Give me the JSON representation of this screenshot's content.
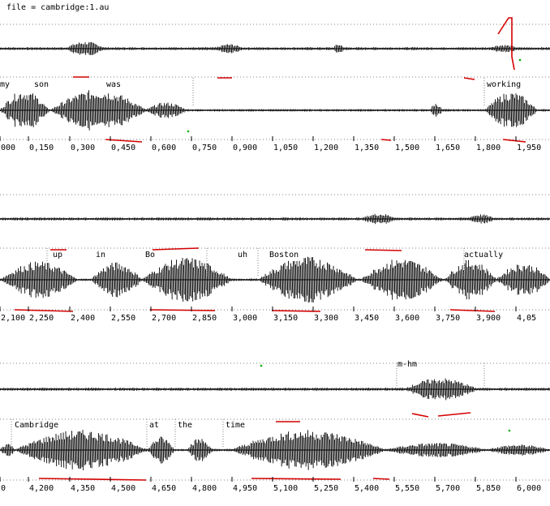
{
  "file_label": "file = cambridge:1.au",
  "rows": [
    {
      "ticks": [
        "000",
        "0,150",
        "0,300",
        "0,450",
        "0,600",
        "0,750",
        "0,900",
        "1,050",
        "1,200",
        "1,350",
        "1,500",
        "1,650",
        "1,800",
        "1,950"
      ],
      "words": [
        "my",
        "son",
        "was",
        "working"
      ],
      "other_words": []
    },
    {
      "ticks": [
        "2,100",
        "2,250",
        "2,400",
        "2,550",
        "2,700",
        "2,850",
        "3,000",
        "3,150",
        "3,300",
        "3,450",
        "3,600",
        "3,750",
        "3,900",
        "4,05"
      ],
      "words": [
        "up",
        "in",
        "Bo",
        "uh",
        "Boston",
        "actually"
      ],
      "other_words": []
    },
    {
      "ticks": [
        "0",
        "4,200",
        "4,350",
        "4,500",
        "4,650",
        "4,800",
        "4,950",
        "5,100",
        "5,250",
        "5,400",
        "5,550",
        "5,700",
        "5,850",
        "6,000"
      ],
      "words": [
        "Cambridge",
        "at",
        "the",
        "time"
      ],
      "other_words": [
        "m-hm"
      ]
    }
  ],
  "colors": {
    "wave": "#000000",
    "pitch": "#d40000",
    "marker": "#00b000",
    "dots": "#808080"
  }
}
